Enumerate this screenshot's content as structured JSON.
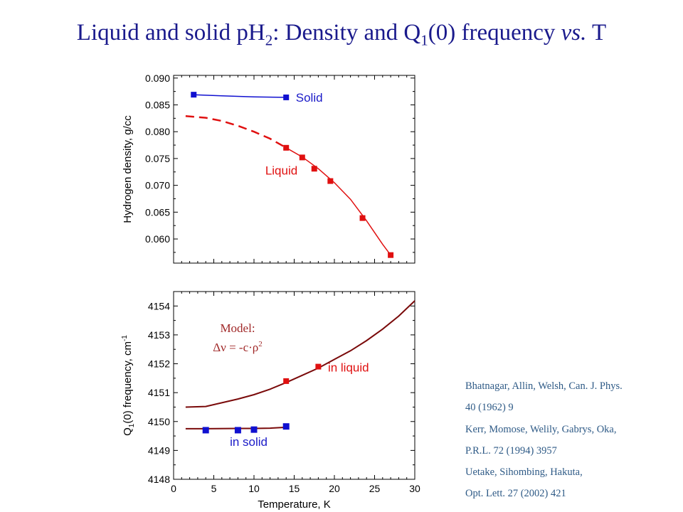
{
  "title": {
    "part1": "Liquid and solid pH",
    "sub1": "2",
    "part2": ": Density and Q",
    "sub2": "1",
    "part3": "(0) frequency ",
    "italic": "vs.",
    "part4": " T"
  },
  "references": [
    "Bhatnagar, Allin, Welsh, Can. J. Phys.",
    "40 (1962) 9",
    "Kerr, Momose, Welily, Gabrys, Oka,",
    "P.R.L. 72 (1994) 3957",
    "Uetake, Sihombing, Hakuta,",
    "Opt. Lett. 27 (2002) 421"
  ],
  "colors": {
    "title": "#1a1a8c",
    "solid": "#1010d0",
    "liquid": "#e01010",
    "model_curve": "#7a0a0a",
    "model_text": "#a02828",
    "blue_label": "#1a1ac8",
    "red_label": "#e01010"
  },
  "chart_data": [
    {
      "type": "line",
      "title": "",
      "xlabel": "",
      "ylabel": "Hydrogen density, g/cc",
      "xlim": [
        0,
        30
      ],
      "ylim": [
        0.0555,
        0.0905
      ],
      "yticks": [
        "0.060",
        "0.065",
        "0.070",
        "0.075",
        "0.080",
        "0.085",
        "0.090"
      ],
      "series": [
        {
          "name": "Solid",
          "points": [
            [
              2.5,
              0.0869
            ],
            [
              14,
              0.0864
            ]
          ],
          "line": [
            [
              2.5,
              0.0869
            ],
            [
              6,
              0.0867
            ],
            [
              10,
              0.0865
            ],
            [
              14,
              0.0864
            ]
          ]
        },
        {
          "name": "Liquid",
          "points": [
            [
              14,
              0.077
            ],
            [
              16,
              0.0752
            ],
            [
              17.5,
              0.0731
            ],
            [
              19.5,
              0.0708
            ],
            [
              23.5,
              0.0639
            ],
            [
              27,
              0.057
            ]
          ],
          "line": [
            [
              14,
              0.077
            ],
            [
              16,
              0.0753
            ],
            [
              18,
              0.0731
            ],
            [
              20,
              0.0705
            ],
            [
              22,
              0.0674
            ],
            [
              24,
              0.0634
            ],
            [
              26,
              0.059
            ],
            [
              27,
              0.057
            ]
          ],
          "extrapolation": [
            [
              1.5,
              0.0829
            ],
            [
              4,
              0.0826
            ],
            [
              6,
              0.082
            ],
            [
              8,
              0.0811
            ],
            [
              10,
              0.08
            ],
            [
              12,
              0.0787
            ],
            [
              14,
              0.077
            ]
          ]
        }
      ]
    },
    {
      "type": "line",
      "title": "",
      "xlabel": "Temperature, K",
      "ylabel": "Q1(0) frequency, cm-1",
      "ylabel_parts": [
        "Q",
        "1",
        "(0) frequency, cm",
        "-1"
      ],
      "xlim": [
        0,
        30
      ],
      "ylim": [
        4148,
        4154.5
      ],
      "xticks": [
        "0",
        "5",
        "10",
        "15",
        "20",
        "25",
        "30"
      ],
      "yticks": [
        "4148",
        "4149",
        "4150",
        "4151",
        "4152",
        "4153",
        "4154"
      ],
      "annotation": {
        "line1": "Model:",
        "line2": "Δν = -c·ρ",
        "line2_sup": "2"
      },
      "series": [
        {
          "name": "in liquid",
          "points": [
            [
              14,
              4151.4
            ],
            [
              18,
              4151.9
            ]
          ],
          "model_curve": [
            [
              1.5,
              4150.5
            ],
            [
              4,
              4150.52
            ],
            [
              6,
              4150.65
            ],
            [
              8,
              4150.78
            ],
            [
              10,
              4150.93
            ],
            [
              12,
              4151.12
            ],
            [
              14,
              4151.35
            ],
            [
              16,
              4151.6
            ],
            [
              18,
              4151.85
            ],
            [
              20,
              4152.15
            ],
            [
              22,
              4152.45
            ],
            [
              24,
              4152.8
            ],
            [
              26,
              4153.2
            ],
            [
              28,
              4153.65
            ],
            [
              30,
              4154.18
            ]
          ]
        },
        {
          "name": "in solid",
          "points": [
            [
              4,
              4149.7
            ],
            [
              8,
              4149.7
            ],
            [
              10,
              4149.72
            ],
            [
              14,
              4149.83
            ]
          ],
          "model_curve": [
            [
              1.5,
              4149.75
            ],
            [
              4,
              4149.75
            ],
            [
              8,
              4149.76
            ],
            [
              10,
              4149.76
            ],
            [
              12,
              4149.77
            ],
            [
              14,
              4149.8
            ]
          ]
        }
      ]
    }
  ]
}
